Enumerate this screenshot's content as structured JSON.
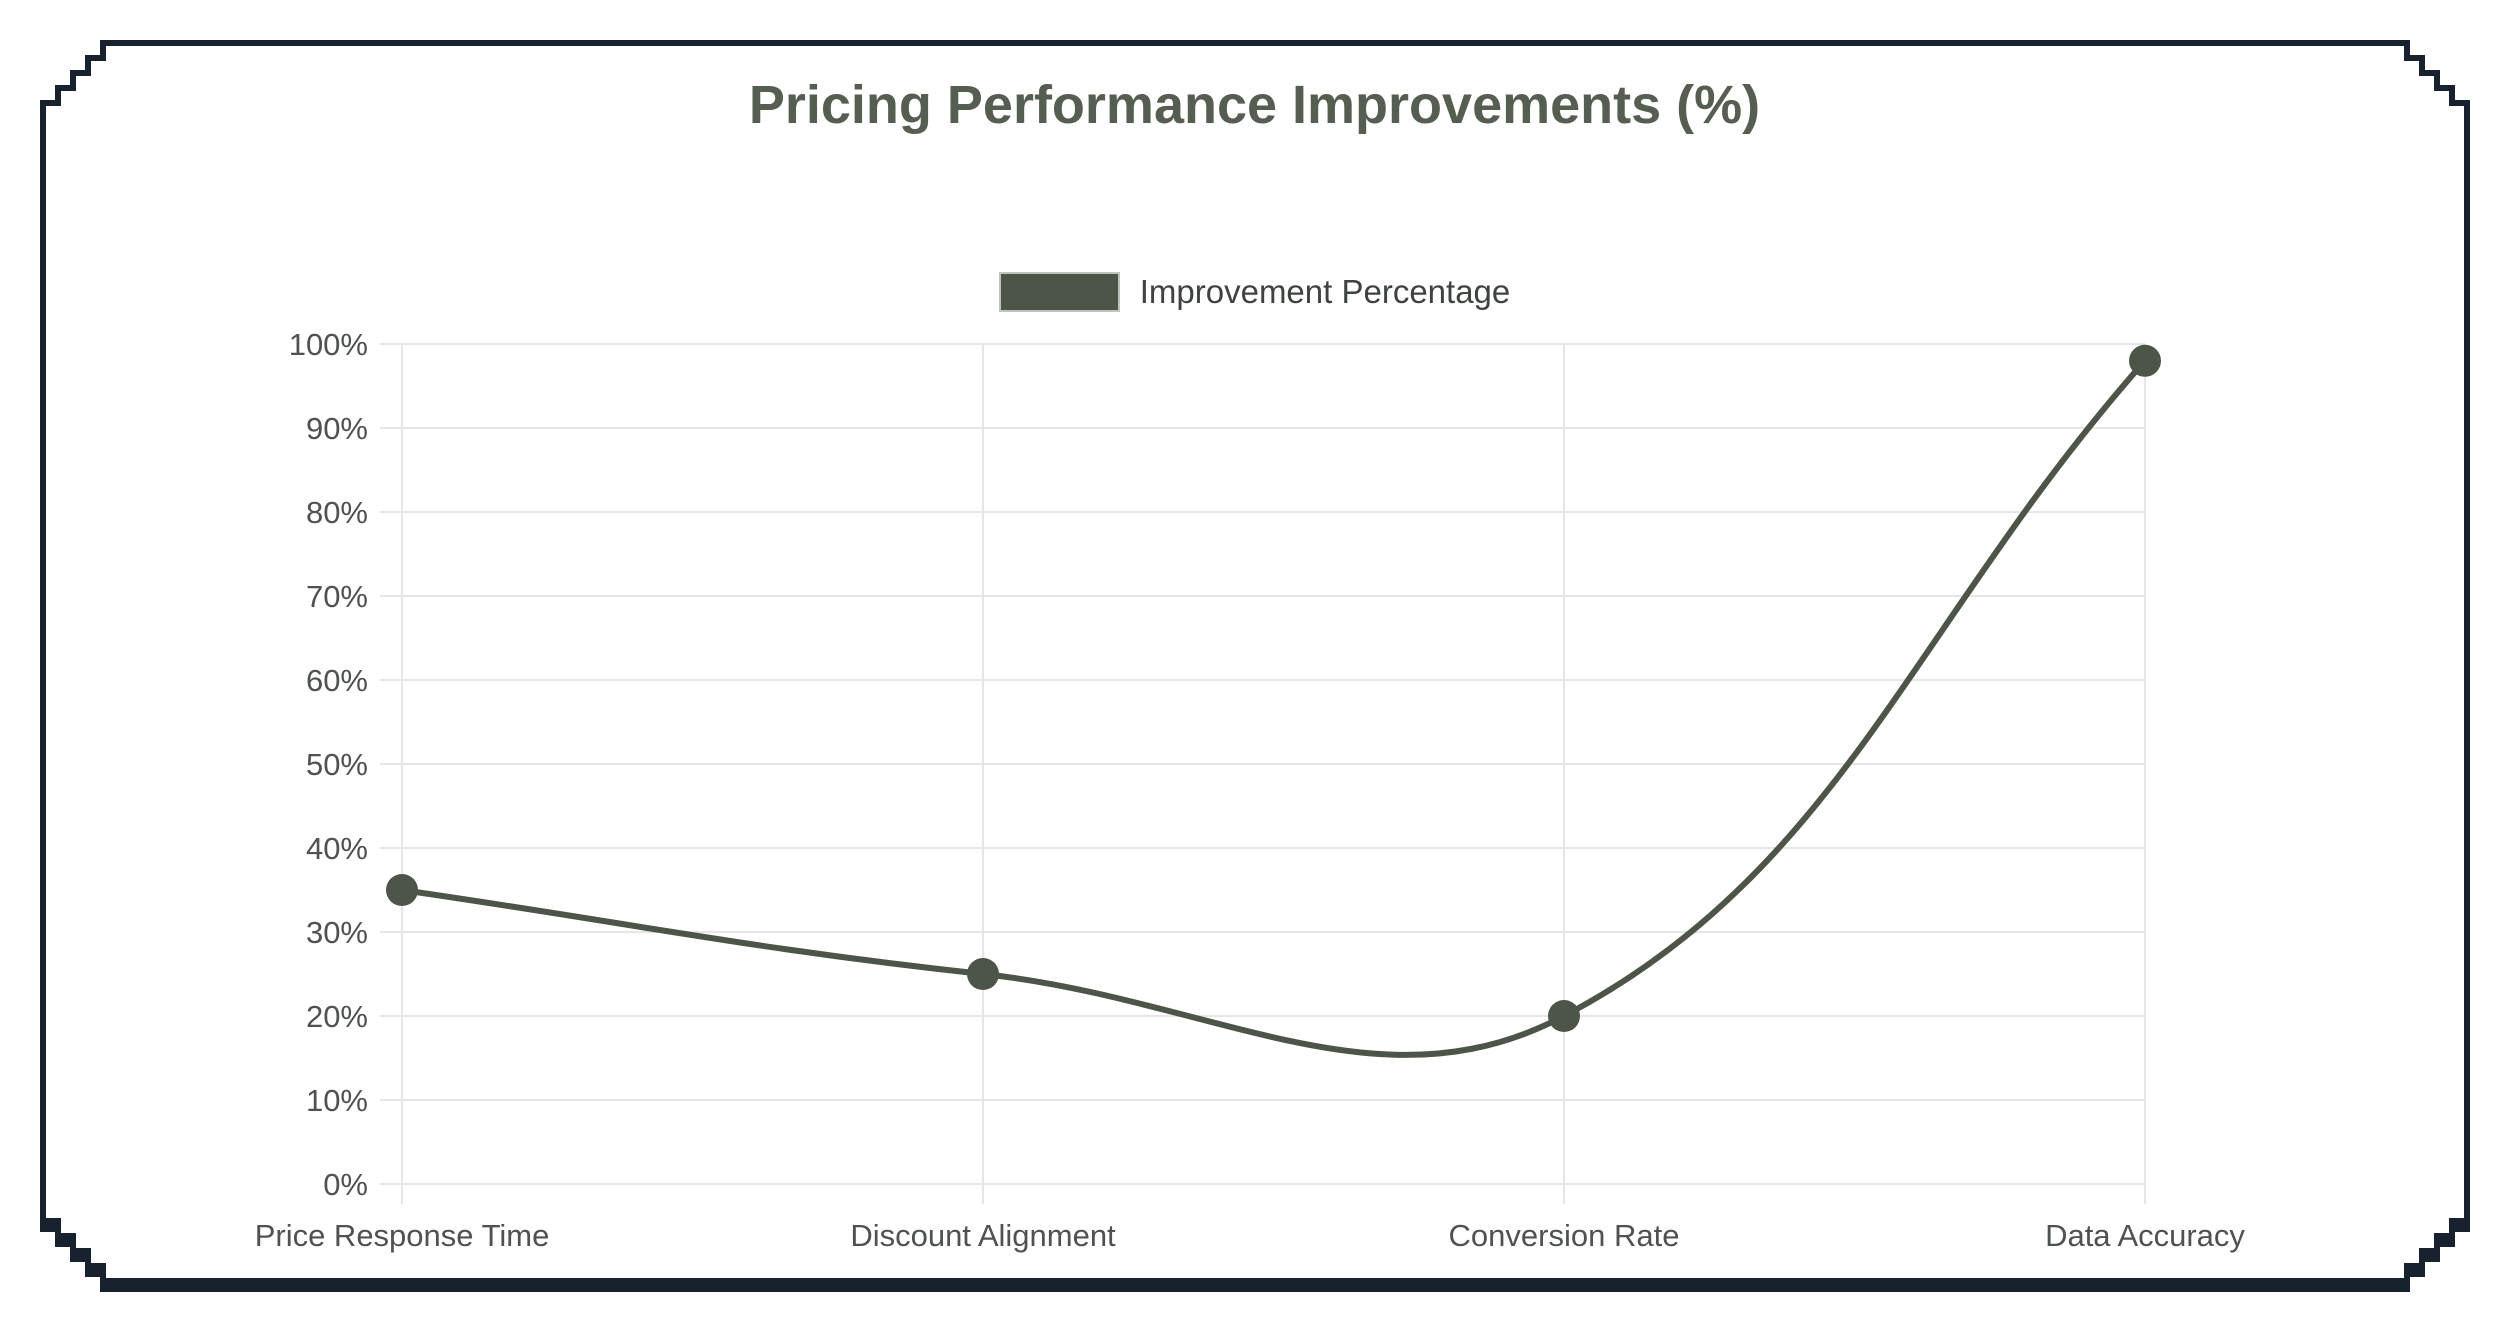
{
  "card": {
    "title": "Pricing Performance Improvements (%)"
  },
  "legend": {
    "label": "Improvement Percentage"
  },
  "colors": {
    "frame": "#17222E",
    "card_bg": "#FFFFFF",
    "series": "#4C5548",
    "title": "#565E52",
    "axis_label": "#4E534E",
    "legend_text": "#3E433E",
    "gridline": "#E6E6E6"
  },
  "chart_data": {
    "type": "line",
    "title": "Pricing Performance Improvements (%)",
    "categories": [
      "Price Response Time",
      "Discount Alignment",
      "Conversion Rate",
      "Data Accuracy"
    ],
    "series": [
      {
        "name": "Improvement Percentage",
        "values": [
          35,
          25,
          20,
          98
        ]
      }
    ],
    "xlabel": "",
    "ylabel": "",
    "ylim": [
      0,
      100
    ],
    "y_ticks": [
      "0%",
      "10%",
      "20%",
      "30%",
      "40%",
      "50%",
      "60%",
      "70%",
      "80%",
      "90%",
      "100%"
    ],
    "grid": true,
    "legend_position": "top",
    "line_tension": 0.4,
    "line_width": 6,
    "point_radius": 16
  }
}
